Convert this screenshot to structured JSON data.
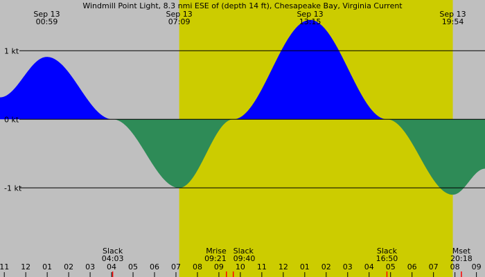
{
  "chart_data": {
    "type": "area",
    "title": "Windmill Point Light, 8.3 nmi ESE of (depth 14 ft), Chesapeake Bay, Virginia Current",
    "xlabel": "",
    "ylabel": "",
    "ylim": [
      -2.3,
      1.74
    ],
    "hour_range": [
      -1.2,
      21.4
    ],
    "y_ticks": [
      {
        "value": 1,
        "label": "1 kt"
      },
      {
        "value": 0,
        "label": "0 kt"
      },
      {
        "value": -1,
        "label": "-1 kt"
      }
    ],
    "hour_ticks": [
      {
        "hour": -1,
        "label": "11"
      },
      {
        "hour": 0,
        "label": "12"
      },
      {
        "hour": 1,
        "label": "01"
      },
      {
        "hour": 2,
        "label": "02"
      },
      {
        "hour": 3,
        "label": "03"
      },
      {
        "hour": 4,
        "label": "04"
      },
      {
        "hour": 5,
        "label": "05"
      },
      {
        "hour": 6,
        "label": "06"
      },
      {
        "hour": 7,
        "label": "07"
      },
      {
        "hour": 8,
        "label": "08"
      },
      {
        "hour": 9,
        "label": "09"
      },
      {
        "hour": 10,
        "label": "10"
      },
      {
        "hour": 11,
        "label": "11"
      },
      {
        "hour": 12,
        "label": "12"
      },
      {
        "hour": 13,
        "label": "01"
      },
      {
        "hour": 14,
        "label": "02"
      },
      {
        "hour": 15,
        "label": "03"
      },
      {
        "hour": 16,
        "label": "04"
      },
      {
        "hour": 17,
        "label": "05"
      },
      {
        "hour": 18,
        "label": "06"
      },
      {
        "hour": 19,
        "label": "07"
      },
      {
        "hour": 20,
        "label": "08"
      },
      {
        "hour": 21,
        "label": "09"
      }
    ],
    "daylight": {
      "start_hour": 7.15,
      "end_hour": 19.9
    },
    "top_labels": [
      {
        "hour": 0.98,
        "date": "Sep 13",
        "time": "00:59"
      },
      {
        "hour": 7.15,
        "date": "Sep 13",
        "time": "07:09"
      },
      {
        "hour": 13.25,
        "date": "Sep 13",
        "time": "13:15"
      },
      {
        "hour": 19.9,
        "date": "Sep 13",
        "time": "19:54"
      }
    ],
    "events": [
      {
        "hour": 4.05,
        "name": "Slack",
        "time": "04:03",
        "anchor": "middle"
      },
      {
        "hour": 9.35,
        "name": "Mrise",
        "time": "09:21",
        "anchor": "end"
      },
      {
        "hour": 9.67,
        "name": "Slack",
        "time": "09:40",
        "anchor": "start"
      },
      {
        "hour": 16.83,
        "name": "Slack",
        "time": "16:50",
        "anchor": "middle"
      },
      {
        "hour": 20.3,
        "name": "Mset",
        "time": "20:18",
        "anchor": "middle"
      }
    ],
    "series": [
      {
        "x": [
          -1.2,
          0.98,
          4.05,
          7.15,
          9.67,
          13.25,
          16.83,
          19.9,
          21.4
        ],
        "y": [
          0.32,
          0.91,
          0.0,
          -1.0,
          0.0,
          1.45,
          0.0,
          -1.1,
          -0.72
        ],
        "positive_color": "#0000ff",
        "negative_color": "#2e8b57"
      }
    ],
    "colors": {
      "night": "#bfbfbf",
      "day": "#cccc00",
      "marker": "#ff0000"
    }
  }
}
